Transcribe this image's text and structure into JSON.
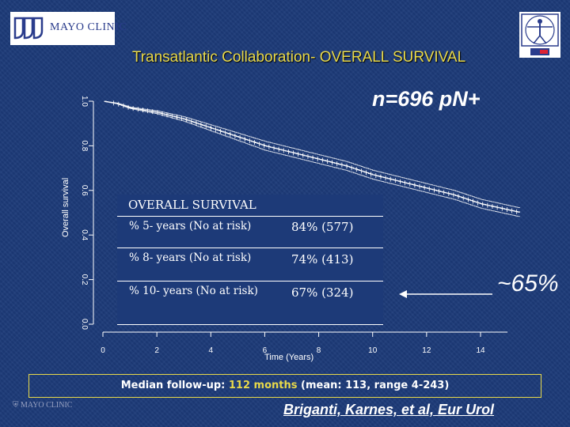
{
  "header": {
    "logo_text": "MAYO CLINIC",
    "title": "Transatlantic Collaboration- OVERALL SURVIVAL"
  },
  "annotation": {
    "n_label": "n=696 pN+",
    "tail_pct": "~65%"
  },
  "table": {
    "header": "OVERALL SURVIVAL",
    "rows": [
      {
        "label": "% 5- years (No at risk)",
        "value": "84%  (577)"
      },
      {
        "label": "% 8- years (No at risk)",
        "value": "74% (413)"
      },
      {
        "label": "% 10- years (No at risk)",
        "value": "67%  (324)"
      }
    ]
  },
  "footer": {
    "note_prefix": "Median follow-up: ",
    "note_highlight": "112 months",
    "note_suffix": " (mean: 113, range 4-243)",
    "small_logo": "MAYO CLINIC",
    "citation": "Briganti, Karnes, et al, Eur Urol"
  },
  "colors": {
    "background": "#1d3a78",
    "title": "#e8d94a",
    "curve": "#ffffff",
    "footnote_border": "#e8d94a"
  },
  "chart_data": {
    "type": "line",
    "title": "Transatlantic Collaboration- OVERALL SURVIVAL",
    "xlabel": "Time (Years)",
    "ylabel": "Overall survival",
    "xlim": [
      0,
      15
    ],
    "ylim": [
      0,
      1.0
    ],
    "xticks": [
      0,
      2,
      4,
      6,
      8,
      10,
      12,
      14
    ],
    "yticks": [
      "0.0",
      "0.2",
      "0.4",
      "0.6",
      "0.8",
      "1.0"
    ],
    "grid": false,
    "series": [
      {
        "x": [
          0,
          0.5,
          1,
          2,
          3,
          4,
          5,
          6,
          7,
          8,
          9,
          10,
          11,
          12,
          13,
          14,
          15.5
        ],
        "y": [
          1.0,
          0.99,
          0.97,
          0.95,
          0.92,
          0.88,
          0.84,
          0.8,
          0.77,
          0.74,
          0.71,
          0.67,
          0.64,
          0.61,
          0.58,
          0.54,
          0.5
        ]
      }
    ],
    "ci_band": 0.02
  }
}
